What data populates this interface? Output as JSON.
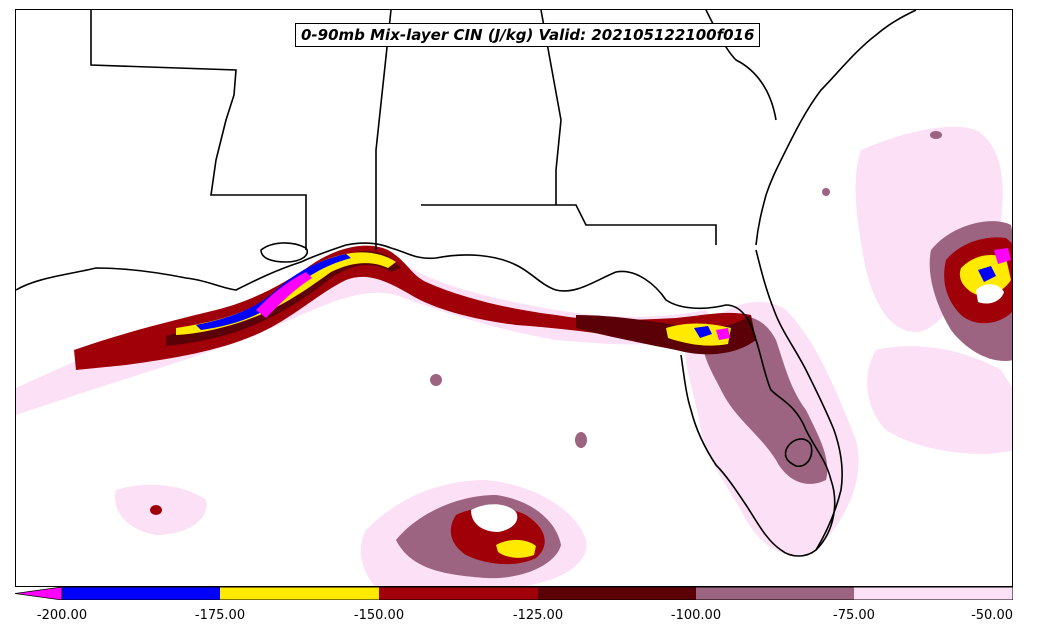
{
  "title": "0-90mb Mix-layer CIN (J/kg) Valid: 202105122100f016",
  "colorbar": {
    "ticks": [
      "-200.00",
      "-175.00",
      "-150.00",
      "-125.00",
      "-100.00",
      "-75.00",
      "-50.00"
    ],
    "colors": [
      "#ff00ff",
      "#0000ff",
      "#ffea00",
      "#a00008",
      "#5c0008",
      "#9c6480",
      "#fbe0f6"
    ]
  }
}
